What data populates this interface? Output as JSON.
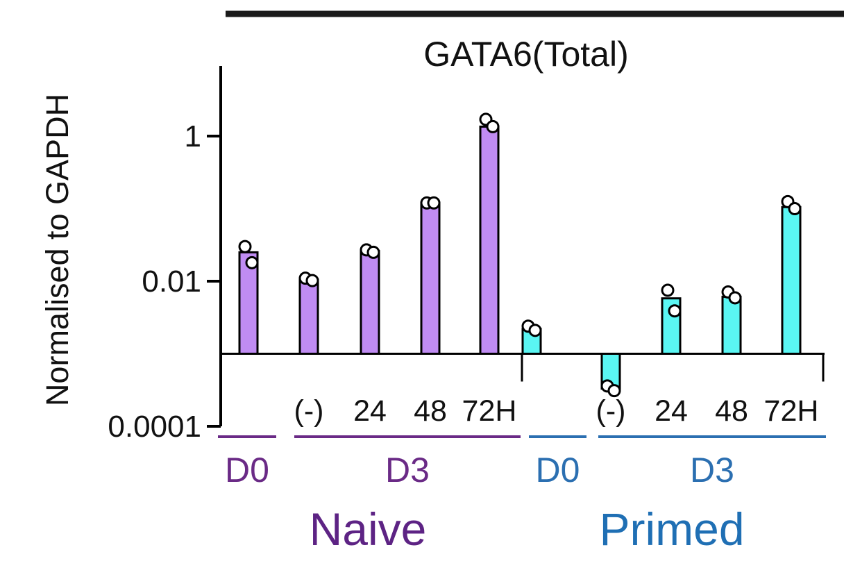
{
  "chart_data": {
    "type": "bar",
    "title": "GATA6(Total)",
    "ylabel": "Normalised to GAPDH",
    "yscale": "log",
    "ylim": [
      0.0001,
      10
    ],
    "baseline": 0.001,
    "yticks": [
      {
        "value": 1,
        "label": "1"
      },
      {
        "value": 0.01,
        "label": "0.01"
      },
      {
        "value": 0.0001,
        "label": "0.0001"
      }
    ],
    "bars": [
      {
        "label": "",
        "group": "Naive",
        "value": 0.025,
        "points": [
          0.03,
          0.018
        ],
        "color": "#c08cf3"
      },
      {
        "label": "(-)",
        "group": "Naive",
        "value": 0.0105,
        "points": [
          0.011,
          0.0102
        ],
        "color": "#c08cf3"
      },
      {
        "label": "24",
        "group": "Naive",
        "value": 0.026,
        "points": [
          0.027,
          0.025
        ],
        "color": "#c08cf3"
      },
      {
        "label": "48",
        "group": "Naive",
        "value": 0.12,
        "points": [
          0.12,
          0.12
        ],
        "color": "#c08cf3"
      },
      {
        "label": "72H",
        "group": "Naive",
        "value": 1.35,
        "points": [
          1.7,
          1.35
        ],
        "color": "#c08cf3"
      },
      {
        "label": "",
        "group": "Primed",
        "value": 0.0022,
        "points": [
          0.0024,
          0.0021
        ],
        "color": "#5af6f3"
      },
      {
        "label": "(-)",
        "group": "Primed",
        "value": 0.00033,
        "points": [
          0.00036,
          0.00031
        ],
        "color": "#5af6f3"
      },
      {
        "label": "24",
        "group": "Primed",
        "value": 0.0058,
        "points": [
          0.0075,
          0.0039
        ],
        "color": "#5af6f3"
      },
      {
        "label": "48",
        "group": "Primed",
        "value": 0.0061,
        "points": [
          0.0071,
          0.0059
        ],
        "color": "#5af6f3"
      },
      {
        "label": "72H",
        "group": "Primed",
        "value": 0.105,
        "points": [
          0.125,
          0.1
        ],
        "color": "#5af6f3"
      }
    ],
    "brackets": [
      {
        "label": "D0",
        "color": "#6a2a86",
        "bars": [
          0,
          0
        ]
      },
      {
        "label": "D3",
        "color": "#6a2a86",
        "bars": [
          1,
          4
        ]
      },
      {
        "label": "D0",
        "color": "#2b6fb1",
        "bars": [
          5,
          5
        ]
      },
      {
        "label": "D3",
        "color": "#2b6fb1",
        "bars": [
          6,
          9
        ]
      }
    ],
    "groups": [
      {
        "label": "Naive",
        "color": "#5d2384"
      },
      {
        "label": "Primed",
        "color": "#1f6fb4"
      }
    ]
  }
}
